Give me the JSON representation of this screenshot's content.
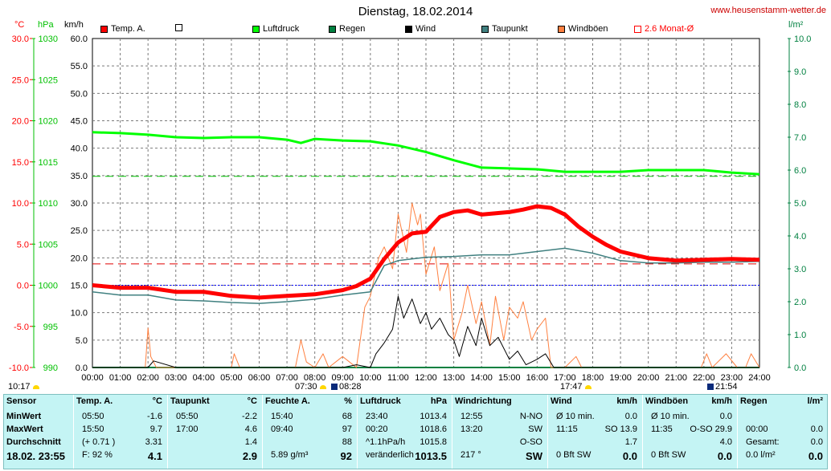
{
  "header": {
    "title": "Dienstag, 18.02.2014",
    "website": "www.heusenstamm-wetter.de",
    "unit_temp": "°C",
    "unit_pressure": "hPa",
    "unit_wind": "km/h",
    "unit_rain": "l/m²"
  },
  "legend": [
    {
      "label": "Temp. A.",
      "color": "#ff0000",
      "filled": true
    },
    {
      "label": "",
      "color": "#ffffff",
      "filled": false
    },
    {
      "label": "Luftdruck",
      "color": "#00ff00",
      "filled": true
    },
    {
      "label": "Regen",
      "color": "#008040",
      "filled": true
    },
    {
      "label": "Wind",
      "color": "#000000",
      "filled": true
    },
    {
      "label": "Taupunkt",
      "color": "#408080",
      "filled": true
    },
    {
      "label": "Windböen",
      "color": "#ff8040",
      "filled": true
    },
    {
      "label": "2.6 Monat-Ø",
      "color": "#ff0000",
      "filled": false
    }
  ],
  "colors": {
    "temp_axis": "#ff0000",
    "pressure_axis": "#00c000",
    "rain_axis": "#008040",
    "table_bg": "#c4f4f4"
  },
  "axes": {
    "temp_ticks": [
      "30.0",
      "25.0",
      "20.0",
      "15.0",
      "10.0",
      "5.0",
      "0.0",
      "-5.0",
      "-10.0"
    ],
    "pressure_ticks": [
      "1030",
      "1025",
      "1020",
      "1015",
      "1010",
      "1005",
      "1000",
      "995",
      "990"
    ],
    "wind_ticks": [
      "60.0",
      "55.0",
      "50.0",
      "45.0",
      "40.0",
      "35.0",
      "30.0",
      "25.0",
      "20.0",
      "15.0",
      "10.0",
      "5.0",
      "0.0"
    ],
    "rain_ticks": [
      "10.0",
      "9.0",
      "8.0",
      "7.0",
      "6.0",
      "5.0",
      "4.0",
      "3.0",
      "2.0",
      "1.0",
      "0.0"
    ],
    "time_ticks": [
      "00:00",
      "01:00",
      "02:00",
      "03:00",
      "04:00",
      "05:00",
      "06:00",
      "07:00",
      "08:00",
      "09:00",
      "10:00",
      "11:00",
      "12:00",
      "13:00",
      "14:00",
      "15:00",
      "16:00",
      "17:00",
      "18:00",
      "19:00",
      "20:00",
      "21:00",
      "22:00",
      "23:00",
      "24:00"
    ]
  },
  "astro": {
    "update_time": "10:17",
    "sunrise": "07:30",
    "moonset": "08:28",
    "sunset": "17:47",
    "moonrise": "21:54"
  },
  "chart_data": {
    "type": "line",
    "title": "Dienstag, 18.02.2014",
    "x_unit": "hours",
    "xlim": [
      0,
      24
    ],
    "temp_ylim": [
      -10,
      30
    ],
    "pressure_ylim": [
      990,
      1030
    ],
    "wind_ylim": [
      0,
      60
    ],
    "rain_ylim": [
      0,
      10
    ],
    "grid": true,
    "reference_lines": {
      "temp_zero": 0.0,
      "temp_monthly_avg": 2.6,
      "pressure_reference": 1013.25
    },
    "series": [
      {
        "name": "Temp. A.",
        "axis": "temp",
        "x": [
          0,
          1,
          2,
          3,
          4,
          5,
          6,
          7,
          8,
          9,
          9.5,
          10,
          10.5,
          11,
          11.5,
          12,
          12.5,
          13,
          13.5,
          14,
          15,
          15.5,
          16,
          16.5,
          17,
          17.5,
          18,
          18.5,
          19,
          20,
          21,
          22,
          23,
          24
        ],
        "y": [
          0.0,
          -0.3,
          -0.3,
          -0.8,
          -0.8,
          -1.3,
          -1.5,
          -1.3,
          -1.1,
          -0.6,
          -0.1,
          0.8,
          3.2,
          5.2,
          6.3,
          6.5,
          8.3,
          8.9,
          9.1,
          8.6,
          8.9,
          9.2,
          9.6,
          9.4,
          8.6,
          7.1,
          5.9,
          4.9,
          4.1,
          3.3,
          3.0,
          3.1,
          3.2,
          3.1
        ]
      },
      {
        "name": "Taupunkt",
        "axis": "temp",
        "x": [
          0,
          1,
          2,
          3,
          4,
          5,
          6,
          7,
          8,
          9,
          10,
          10.5,
          11,
          12,
          13,
          14,
          15,
          16,
          17,
          18,
          19,
          20,
          21,
          22,
          23,
          24
        ],
        "y": [
          -0.8,
          -1.2,
          -1.2,
          -1.8,
          -1.9,
          -2.1,
          -2.2,
          -2.0,
          -1.7,
          -1.2,
          -0.8,
          2.4,
          3.0,
          3.4,
          3.5,
          3.7,
          3.7,
          4.1,
          4.5,
          3.9,
          3.0,
          2.7,
          2.7,
          2.8,
          2.8,
          2.9
        ]
      },
      {
        "name": "Luftdruck",
        "axis": "pressure",
        "x": [
          0,
          1,
          2,
          3,
          4,
          5,
          6,
          7,
          7.5,
          8,
          9,
          10,
          11,
          12,
          13,
          14,
          15,
          16,
          17,
          18,
          19,
          20,
          21,
          22,
          23,
          24
        ],
        "y": [
          1018.6,
          1018.5,
          1018.3,
          1018.0,
          1017.9,
          1018.0,
          1018.0,
          1017.7,
          1017.3,
          1017.8,
          1017.6,
          1017.5,
          1017.0,
          1016.2,
          1015.2,
          1014.3,
          1014.2,
          1014.1,
          1013.8,
          1013.8,
          1013.8,
          1014.0,
          1014.0,
          1014.0,
          1013.7,
          1013.5
        ]
      },
      {
        "name": "Wind",
        "axis": "wind",
        "x": [
          0,
          2,
          2.2,
          3,
          8,
          9,
          9.5,
          10,
          10.2,
          10.5,
          10.8,
          11,
          11.2,
          11.5,
          11.8,
          12,
          12.2,
          12.5,
          12.8,
          13,
          13.2,
          13.5,
          13.8,
          14,
          14.3,
          14.6,
          15,
          15.3,
          15.6,
          16,
          16.3,
          16.6,
          17,
          24
        ],
        "y": [
          0,
          0,
          1.2,
          0,
          0,
          0,
          0.5,
          0,
          2.5,
          4.5,
          7,
          13,
          9,
          12.5,
          8,
          10,
          7,
          9,
          6,
          5,
          2,
          7.5,
          4,
          9,
          4,
          5.5,
          1.5,
          3,
          0.5,
          1.5,
          2.5,
          0,
          0,
          0
        ]
      },
      {
        "name": "Windböen",
        "axis": "wind",
        "x": [
          0,
          1.9,
          2.0,
          2.1,
          2.3,
          5.0,
          5.1,
          5.3,
          7.3,
          7.5,
          7.7,
          8.0,
          8.3,
          8.5,
          9.0,
          9.5,
          9.8,
          10.0,
          10.3,
          10.5,
          10.8,
          11.0,
          11.3,
          11.5,
          11.7,
          11.8,
          12.0,
          12.3,
          12.5,
          12.8,
          13.0,
          13.3,
          13.5,
          13.8,
          14.0,
          14.3,
          14.5,
          14.8,
          15.0,
          15.3,
          15.5,
          15.8,
          16.0,
          16.3,
          16.5,
          17.0,
          17.4,
          17.6,
          17.8,
          21.9,
          22.1,
          22.3,
          22.8,
          23.2,
          23.5,
          23.7,
          24
        ],
        "y": [
          0,
          0,
          7.2,
          2,
          0,
          0,
          2.5,
          0,
          0,
          5,
          1,
          0,
          2.5,
          0,
          2,
          0,
          11,
          13,
          20,
          22,
          18,
          28,
          21,
          30,
          26,
          28,
          17,
          22,
          14,
          19,
          5,
          10,
          15,
          8,
          12,
          4,
          13,
          5,
          11,
          9,
          12,
          5,
          7,
          9,
          0,
          0,
          2,
          0,
          0,
          0,
          2.5,
          0,
          2.5,
          0,
          0,
          2.5,
          0
        ]
      },
      {
        "name": "Regen",
        "axis": "rain",
        "x": [
          0,
          24
        ],
        "y": [
          0,
          0
        ]
      }
    ]
  },
  "table": {
    "columns": [
      {
        "title": "Sensor",
        "unit": "",
        "rows": [
          [
            "MinWert",
            ""
          ],
          [
            "MaxWert",
            ""
          ],
          [
            "Durchschnitt",
            ""
          ],
          [
            "18.02. 23:55",
            ""
          ]
        ]
      },
      {
        "title": "Temp. A.",
        "unit": "°C",
        "rows": [
          [
            "05:50",
            "-1.6"
          ],
          [
            "15:50",
            "9.7"
          ],
          [
            "(+ 0.71 )",
            "3.31"
          ],
          [
            "F: 92 %",
            "4.1"
          ]
        ]
      },
      {
        "title": "Taupunkt",
        "unit": "°C",
        "rows": [
          [
            "05:50",
            "-2.2"
          ],
          [
            "17:00",
            "4.6"
          ],
          [
            "",
            "1.4"
          ],
          [
            "",
            "2.9"
          ]
        ]
      },
      {
        "title": "Feuchte A.",
        "unit": "%",
        "rows": [
          [
            "15:40",
            "68"
          ],
          [
            "09:40",
            "97"
          ],
          [
            "",
            "88"
          ],
          [
            "5.89 g/m³",
            "92"
          ]
        ]
      },
      {
        "title": "Luftdruck",
        "unit": "hPa",
        "rows": [
          [
            "23:40",
            "1013.4"
          ],
          [
            "00:20",
            "1018.6"
          ],
          [
            "^1.1hPa/h",
            "1015.8"
          ],
          [
            "veränderlich",
            "1013.5"
          ]
        ]
      },
      {
        "title": "Windrichtung",
        "unit": "",
        "rows": [
          [
            "12:55",
            "N-NO"
          ],
          [
            "13:20",
            "SW"
          ],
          [
            "",
            "O-SO"
          ],
          [
            "217 °",
            "SW"
          ]
        ]
      },
      {
        "title": "Wind",
        "unit": "km/h",
        "rows": [
          [
            "Ø 10 min.",
            "0.0"
          ],
          [
            "11:15",
            "SO 13.9"
          ],
          [
            "",
            "1.7"
          ],
          [
            "0 Bft SW",
            "0.0"
          ]
        ]
      },
      {
        "title": "Windböen",
        "unit": "km/h",
        "rows": [
          [
            "Ø 10 min.",
            "0.0"
          ],
          [
            "11:35",
            "O-SO 29.9"
          ],
          [
            "",
            "4.0"
          ],
          [
            "0 Bft SW",
            "0.0"
          ]
        ]
      },
      {
        "title": "Regen",
        "unit": "l/m²",
        "rows": [
          [
            "",
            ""
          ],
          [
            "00:00",
            "0.0"
          ],
          [
            "Gesamt:",
            "0.0"
          ],
          [
            "0.0 l/m²",
            "0.0"
          ]
        ]
      }
    ]
  }
}
